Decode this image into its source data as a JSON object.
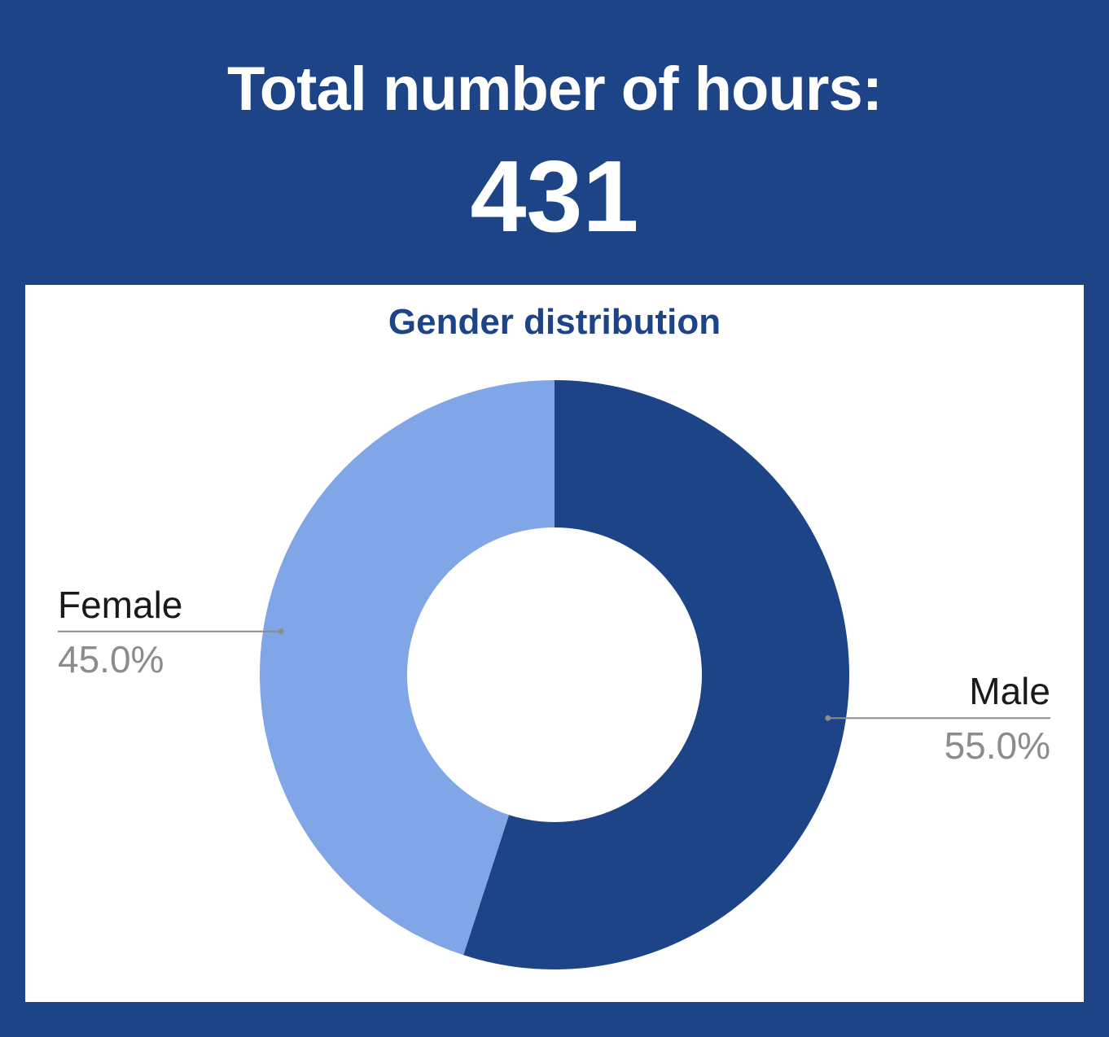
{
  "header": {
    "title": "Total number of hours:",
    "value": "431"
  },
  "colors": {
    "background": "#1e4488",
    "panel": "#ffffff",
    "title_text": "#1e4488",
    "label_name": "#1a1a1a",
    "label_value": "#8c8c8c",
    "leader_line": "#8c8c8c"
  },
  "chart_data": {
    "type": "pie",
    "variant": "donut",
    "title": "Gender distribution",
    "legend": "none",
    "slices": [
      {
        "label": "Male",
        "value": 55.0,
        "display": "55.0%",
        "color": "#1e4488"
      },
      {
        "label": "Female",
        "value": 45.0,
        "display": "45.0%",
        "color": "#80a6e8"
      }
    ]
  }
}
